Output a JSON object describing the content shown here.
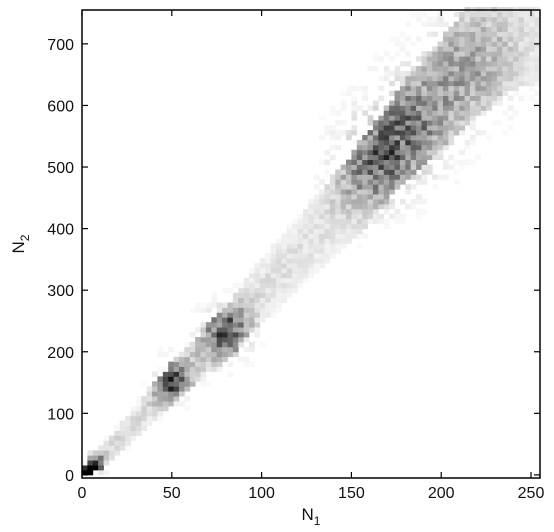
{
  "chart_data": {
    "type": "heatmap",
    "title": "",
    "xlabel_main": "N",
    "xlabel_sub": "1",
    "ylabel_main": "N",
    "ylabel_sub": "2",
    "xlim": [
      0,
      255
    ],
    "ylim": [
      -5,
      755
    ],
    "xticks": [
      0,
      50,
      100,
      150,
      200,
      250
    ],
    "yticks": [
      0,
      100,
      200,
      300,
      400,
      500,
      600,
      700
    ],
    "grid": false,
    "legend": "none",
    "colormap": {
      "low": "#ffffff",
      "high": "#000000"
    },
    "bin_width": {
      "x": 3,
      "y": 8
    },
    "density_ridge": [
      {
        "x": 0,
        "y": 0
      },
      {
        "x": 25,
        "y": 70
      },
      {
        "x": 50,
        "y": 150
      },
      {
        "x": 80,
        "y": 230
      },
      {
        "x": 100,
        "y": 300
      },
      {
        "x": 150,
        "y": 450
      },
      {
        "x": 165,
        "y": 505
      },
      {
        "x": 180,
        "y": 560
      },
      {
        "x": 200,
        "y": 620
      },
      {
        "x": 220,
        "y": 680
      },
      {
        "x": 245,
        "y": 740
      }
    ],
    "density_clusters": [
      {
        "x": 2,
        "y": 5,
        "weight": 1.0
      },
      {
        "x": 7,
        "y": 18,
        "weight": 0.85
      },
      {
        "x": 50,
        "y": 155,
        "weight": 0.7
      },
      {
        "x": 80,
        "y": 232,
        "weight": 0.65
      },
      {
        "x": 163,
        "y": 505,
        "weight": 0.45
      },
      {
        "x": 182,
        "y": 570,
        "weight": 0.4
      },
      {
        "x": 215,
        "y": 670,
        "weight": 0.3
      }
    ]
  }
}
